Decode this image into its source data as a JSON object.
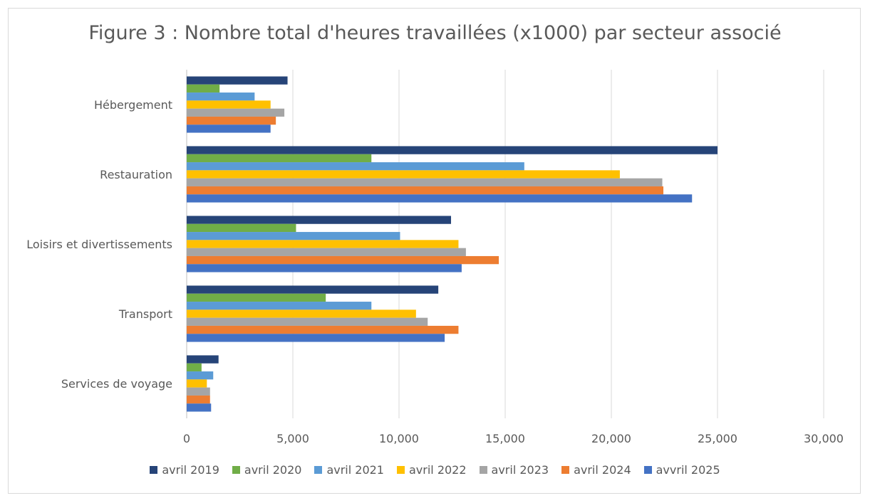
{
  "chart_data": {
    "type": "bar",
    "orientation": "horizontal",
    "title": "Figure 3 : Nombre total d'heures travaillées (x1000) par secteur associé",
    "categories": [
      "Hébergement",
      "Restauration",
      "Loisirs et divertissements",
      "Transport",
      "Services de voyage"
    ],
    "series": [
      {
        "name": "avril 2019",
        "color": "#264478",
        "values": [
          4750,
          25000,
          12450,
          11850,
          1500
        ]
      },
      {
        "name": "avril 2020",
        "color": "#70AD47",
        "values": [
          1550,
          8700,
          5150,
          6550,
          700
        ]
      },
      {
        "name": "avril 2021",
        "color": "#5B9BD5",
        "values": [
          3200,
          15900,
          10050,
          8700,
          1250
        ]
      },
      {
        "name": "avril 2022",
        "color": "#FFC000",
        "values": [
          3950,
          20400,
          12800,
          10800,
          950
        ]
      },
      {
        "name": "avril 2023",
        "color": "#A5A5A5",
        "values": [
          4600,
          22400,
          13150,
          11350,
          1100
        ]
      },
      {
        "name": "avril 2024",
        "color": "#ED7D31",
        "values": [
          4200,
          22450,
          14700,
          12800,
          1100
        ]
      },
      {
        "name": "avvril 2025",
        "color": "#4472C4",
        "values": [
          3950,
          23800,
          12950,
          12150,
          1150
        ]
      }
    ],
    "xlim": [
      0,
      30000
    ],
    "xticks": [
      0,
      5000,
      10000,
      15000,
      20000,
      25000,
      30000
    ],
    "xtick_labels": [
      "0",
      "5,000",
      "10,000",
      "15,000",
      "20,000",
      "25,000",
      "30,000"
    ],
    "grid": "vertical",
    "legend_position": "bottom",
    "xlabel": "",
    "ylabel": ""
  }
}
